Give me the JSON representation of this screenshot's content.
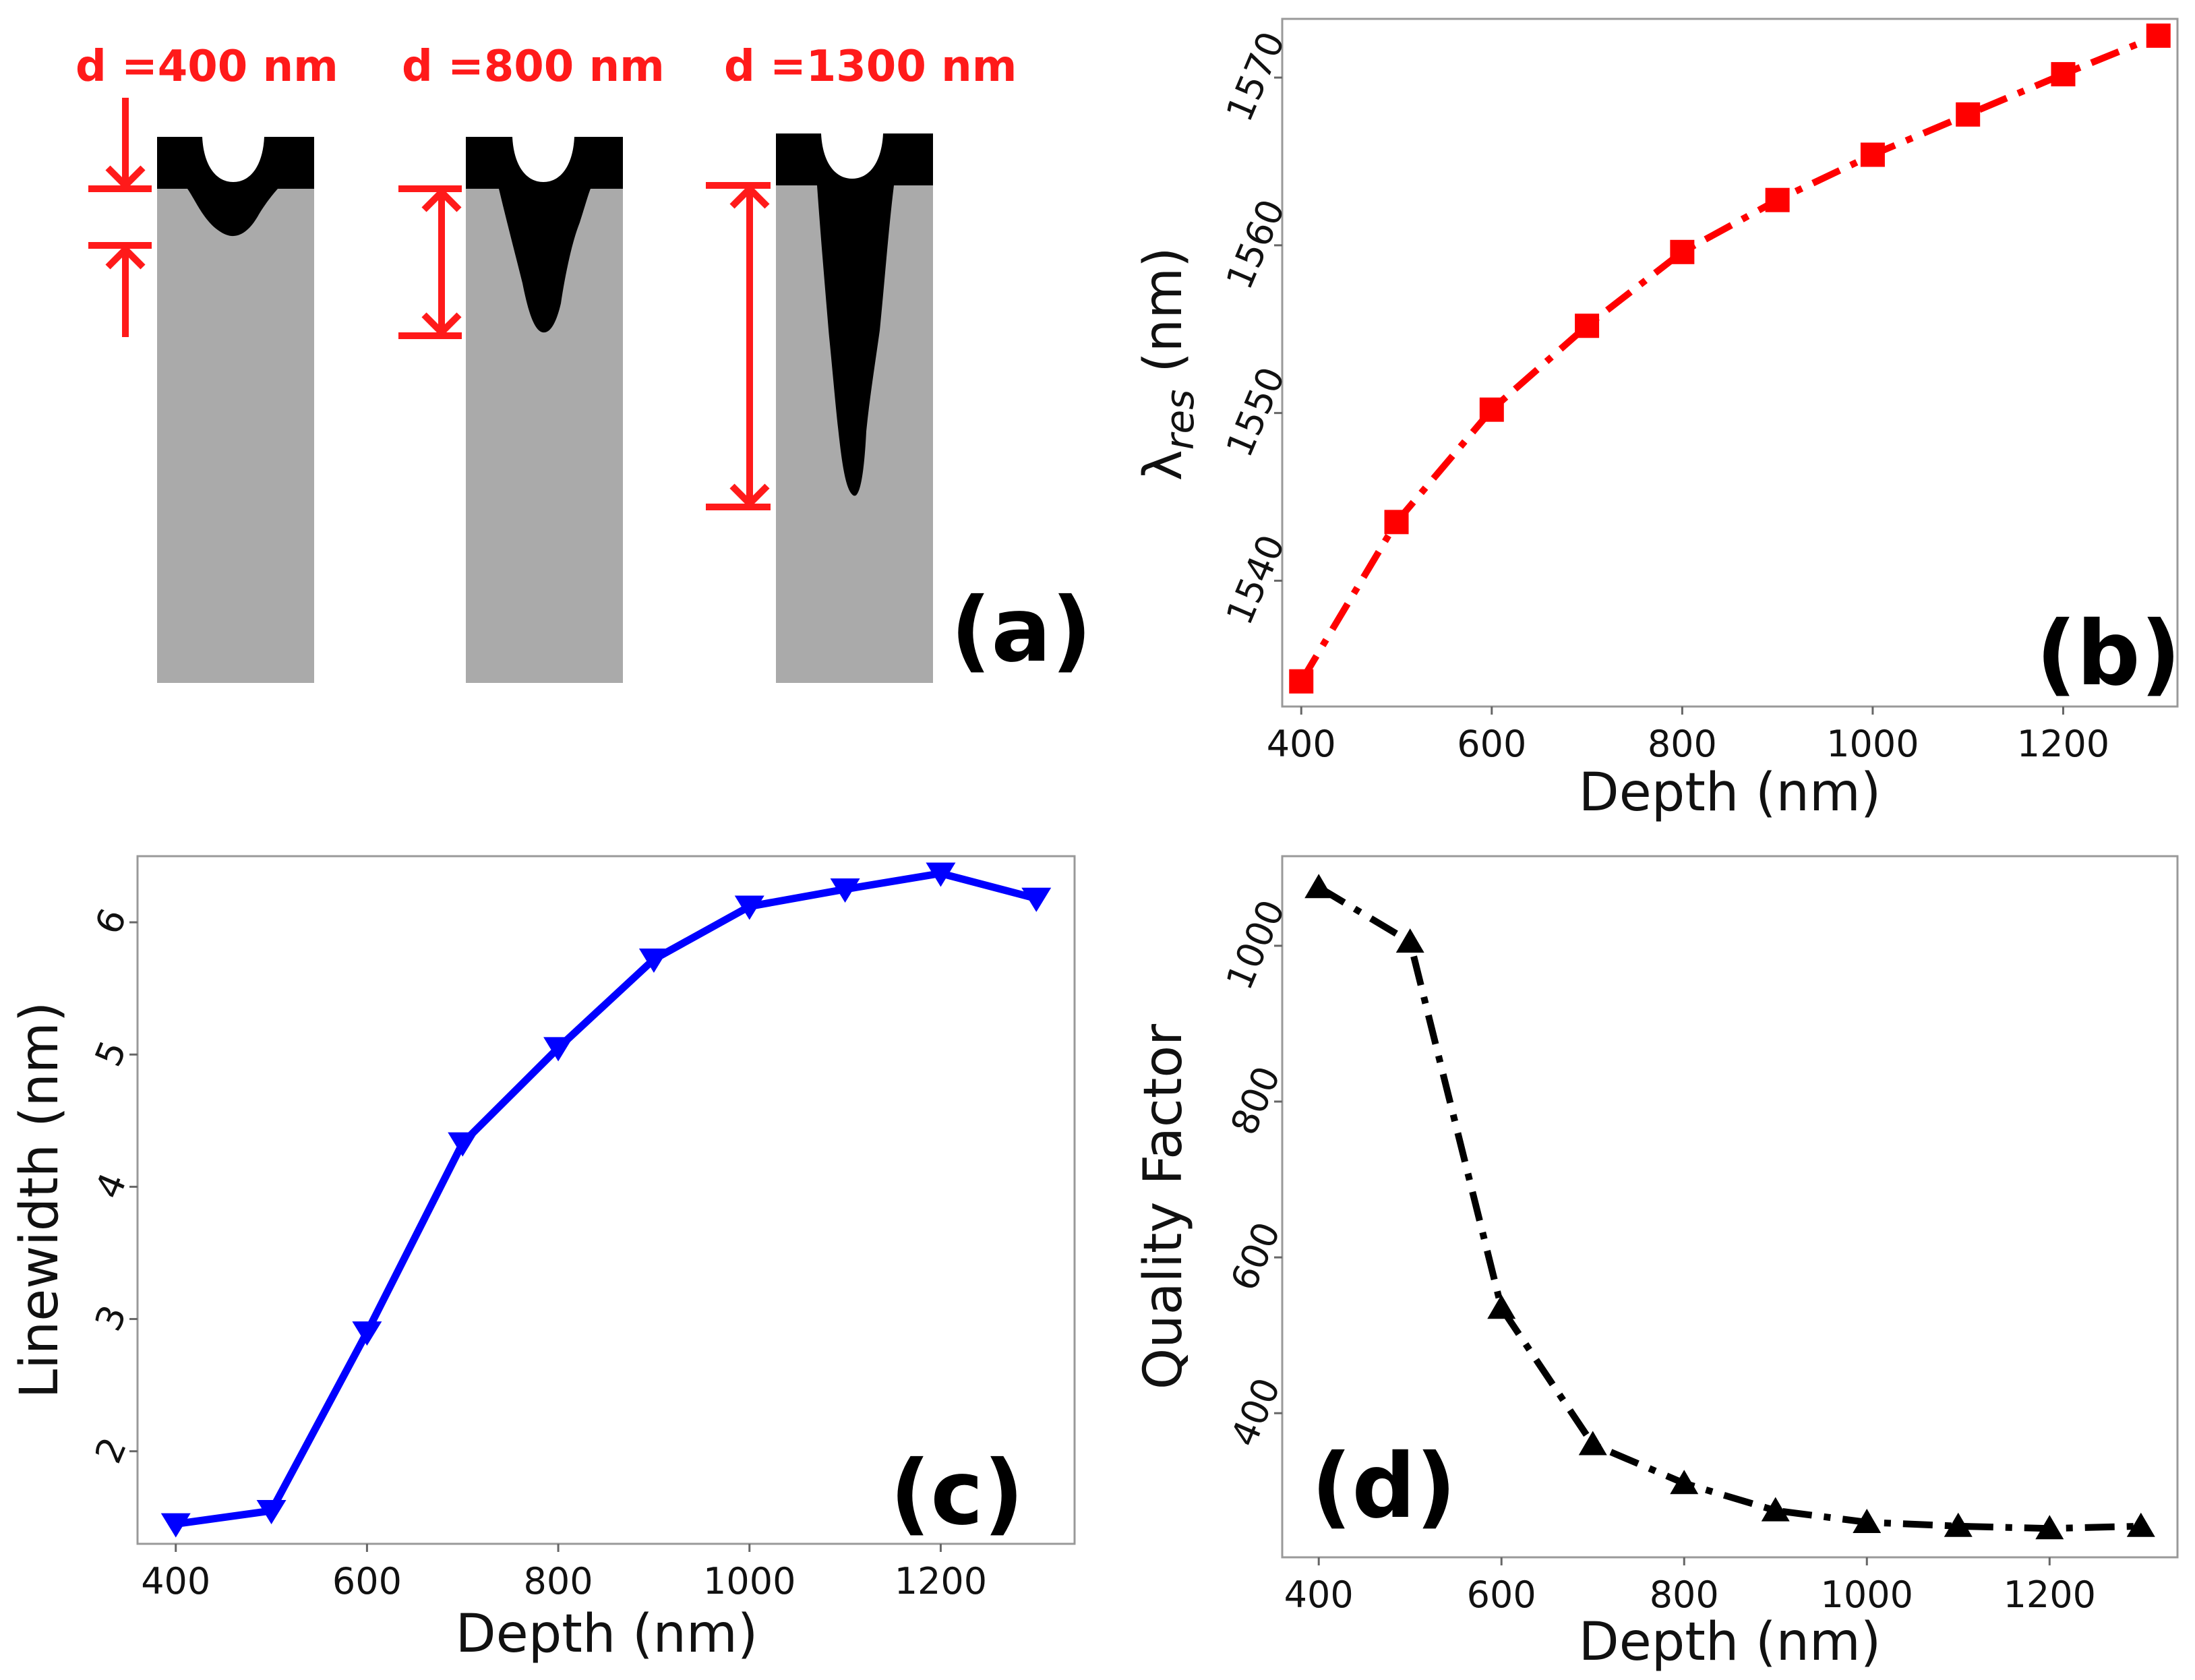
{
  "panel_a": {
    "label": "(a)",
    "depth_labels": [
      "d =400 nm",
      "d =800 nm",
      "d =1300 nm"
    ],
    "depths_nm": [
      400,
      800,
      1300
    ],
    "color": "#ff1a1a"
  },
  "chart_data": [
    {
      "type": "line",
      "panel": "(b)",
      "xlabel": "Depth (nm)",
      "ylabel": "λres (nm)",
      "ylabel_main": "λ",
      "ylabel_sub": "res",
      "ylabel_unit": " (nm)",
      "xlim": [
        380,
        1320
      ],
      "ylim": [
        1532.5,
        1573.5
      ],
      "xticks": [
        400,
        600,
        800,
        1000,
        1200
      ],
      "yticks": [
        1540,
        1550,
        1560,
        1570
      ],
      "grid": false,
      "color": "#ff0000",
      "marker": "square",
      "line_style": "dash-dot",
      "x": [
        400,
        500,
        600,
        700,
        800,
        900,
        1000,
        1100,
        1200,
        1300
      ],
      "y": [
        1534.0,
        1543.5,
        1550.2,
        1555.2,
        1559.6,
        1562.7,
        1565.4,
        1567.8,
        1570.2,
        1572.5
      ]
    },
    {
      "type": "line",
      "panel": "(c)",
      "xlabel": "Depth (nm)",
      "ylabel": "Linewidth (nm)",
      "xlim": [
        360,
        1340
      ],
      "ylim": [
        1.3,
        6.5
      ],
      "xticks": [
        400,
        600,
        800,
        1000,
        1200
      ],
      "yticks": [
        2,
        3,
        4,
        5,
        6
      ],
      "grid": false,
      "color": "#0000ff",
      "marker": "triangle-down",
      "line_style": "solid",
      "x": [
        400,
        500,
        600,
        700,
        800,
        900,
        1000,
        1100,
        1200,
        1300
      ],
      "y": [
        1.45,
        1.55,
        2.9,
        4.33,
        5.05,
        5.72,
        6.12,
        6.25,
        6.37,
        6.18
      ]
    },
    {
      "type": "line",
      "panel": "(d)",
      "xlabel": "Depth (nm)",
      "ylabel": "Quality Factor",
      "xlim": [
        360,
        1340
      ],
      "ylim": [
        215,
        1115
      ],
      "xticks": [
        400,
        600,
        800,
        1000,
        1200
      ],
      "yticks": [
        400,
        600,
        800,
        1000
      ],
      "grid": false,
      "color": "#000000",
      "marker": "triangle-up",
      "line_style": "dash-dot",
      "x": [
        400,
        500,
        600,
        700,
        800,
        900,
        1000,
        1100,
        1200,
        1300
      ],
      "y": [
        1075,
        1005,
        535,
        360,
        310,
        275,
        260,
        255,
        252,
        255
      ]
    }
  ]
}
